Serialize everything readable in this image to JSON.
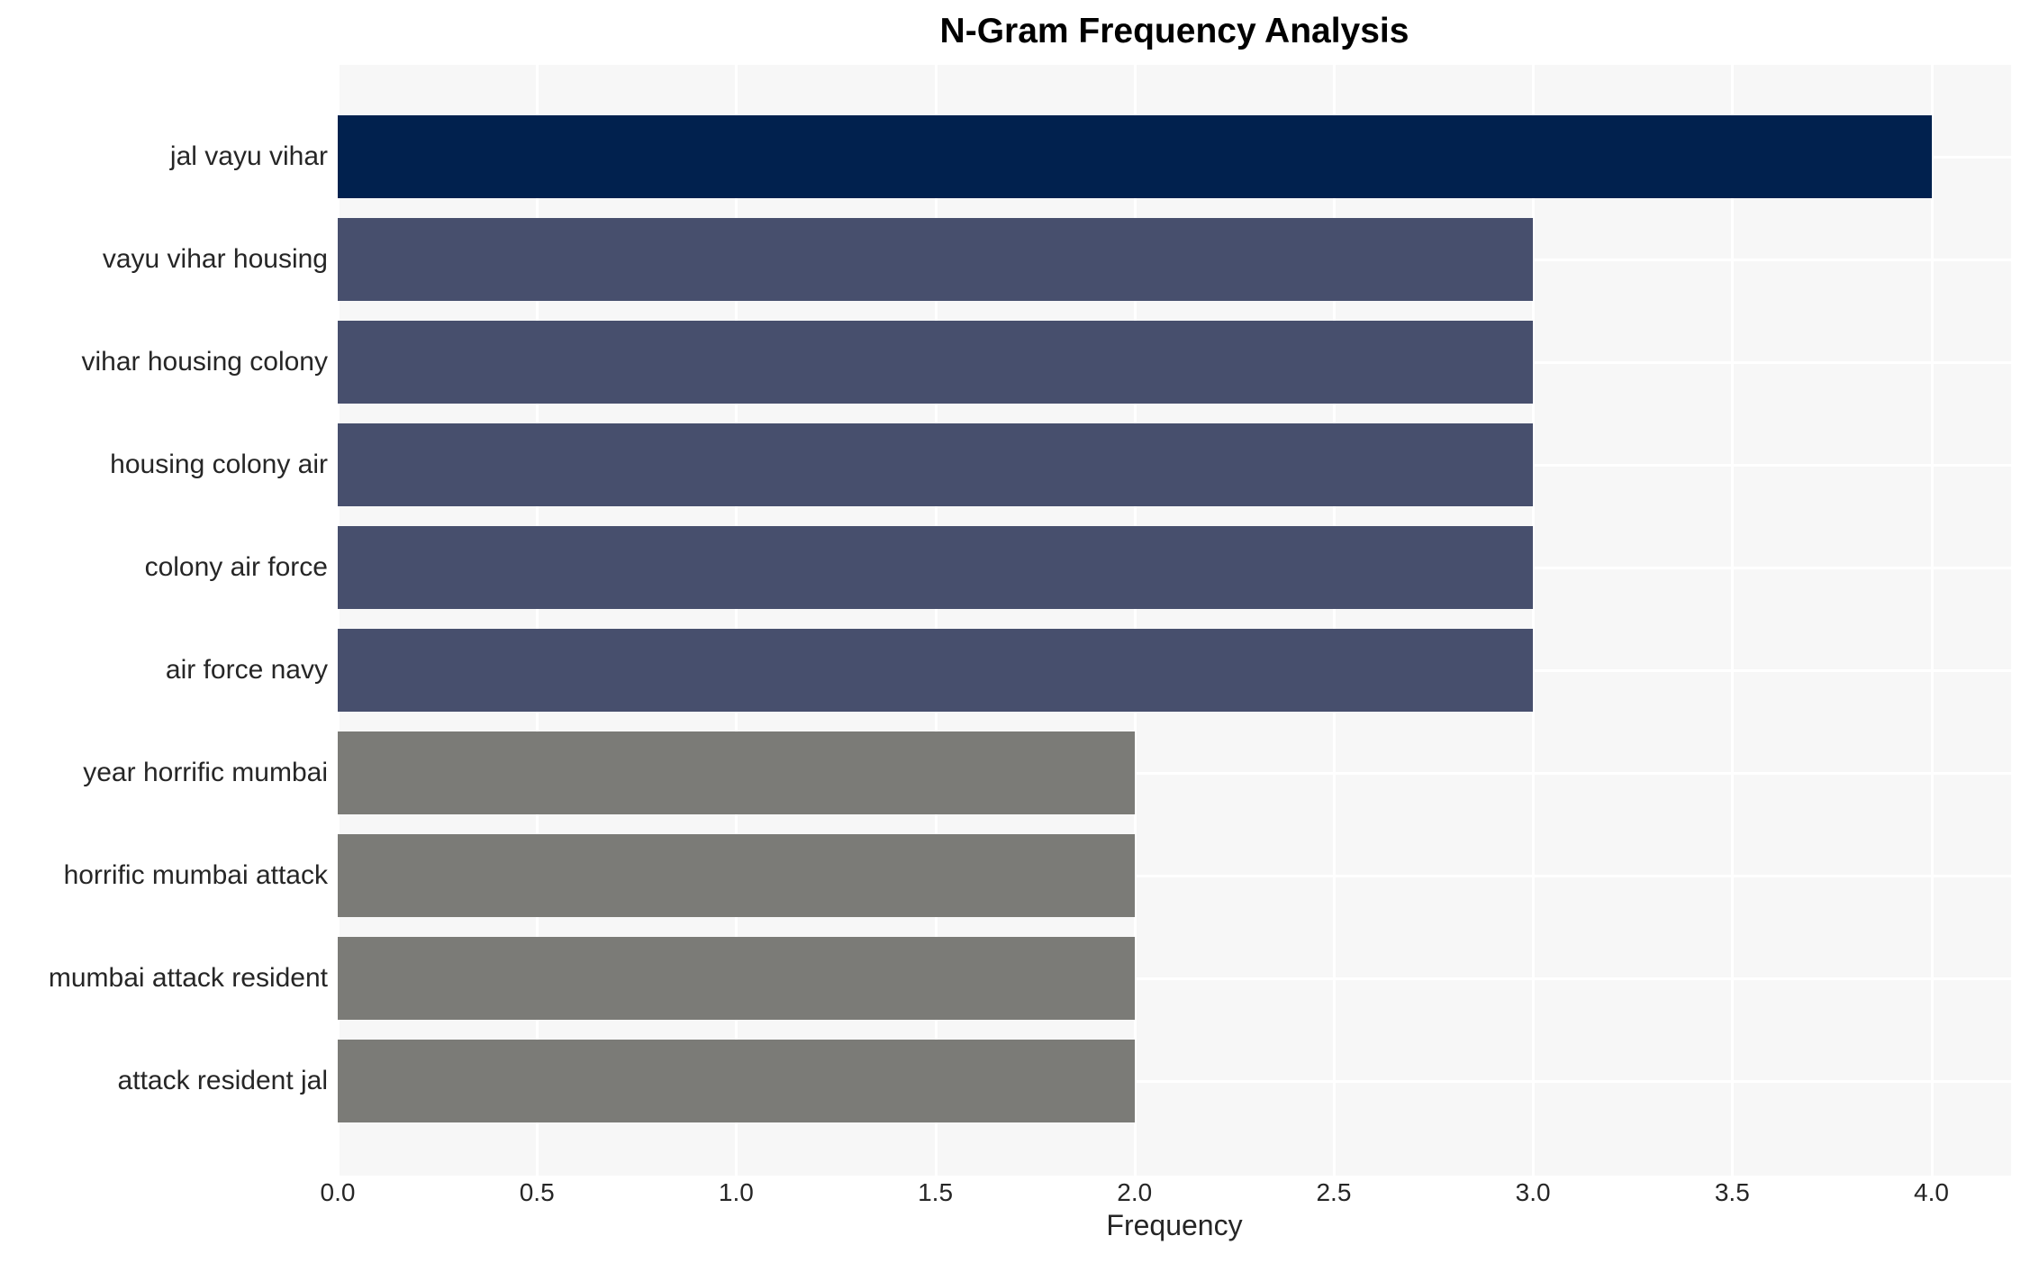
{
  "chart_data": {
    "type": "bar",
    "orientation": "horizontal",
    "title": "N-Gram Frequency Analysis",
    "xlabel": "Frequency",
    "ylabel": "",
    "categories": [
      "jal vayu vihar",
      "vayu vihar housing",
      "vihar housing colony",
      "housing colony air",
      "colony air force",
      "air force navy",
      "year horrific mumbai",
      "horrific mumbai attack",
      "mumbai attack resident",
      "attack resident jal"
    ],
    "values": [
      4,
      3,
      3,
      3,
      3,
      3,
      2,
      2,
      2,
      2
    ],
    "bar_colors": [
      "#01214e",
      "#474f6d",
      "#474f6d",
      "#474f6d",
      "#474f6d",
      "#474f6d",
      "#7b7b77",
      "#7b7b77",
      "#7b7b77",
      "#7b7b77"
    ],
    "xlim": [
      0,
      4.2
    ],
    "xtick_values": [
      0.0,
      0.5,
      1.0,
      1.5,
      2.0,
      2.5,
      3.0,
      3.5,
      4.0
    ],
    "xtick_labels": [
      "0.0",
      "0.5",
      "1.0",
      "1.5",
      "2.0",
      "2.5",
      "3.0",
      "3.5",
      "4.0"
    ],
    "grid": true,
    "legend": "none",
    "plot_background": "#f7f7f7",
    "grid_color": "#ffffff",
    "text_color": "#262626",
    "title_color": "#000000"
  }
}
